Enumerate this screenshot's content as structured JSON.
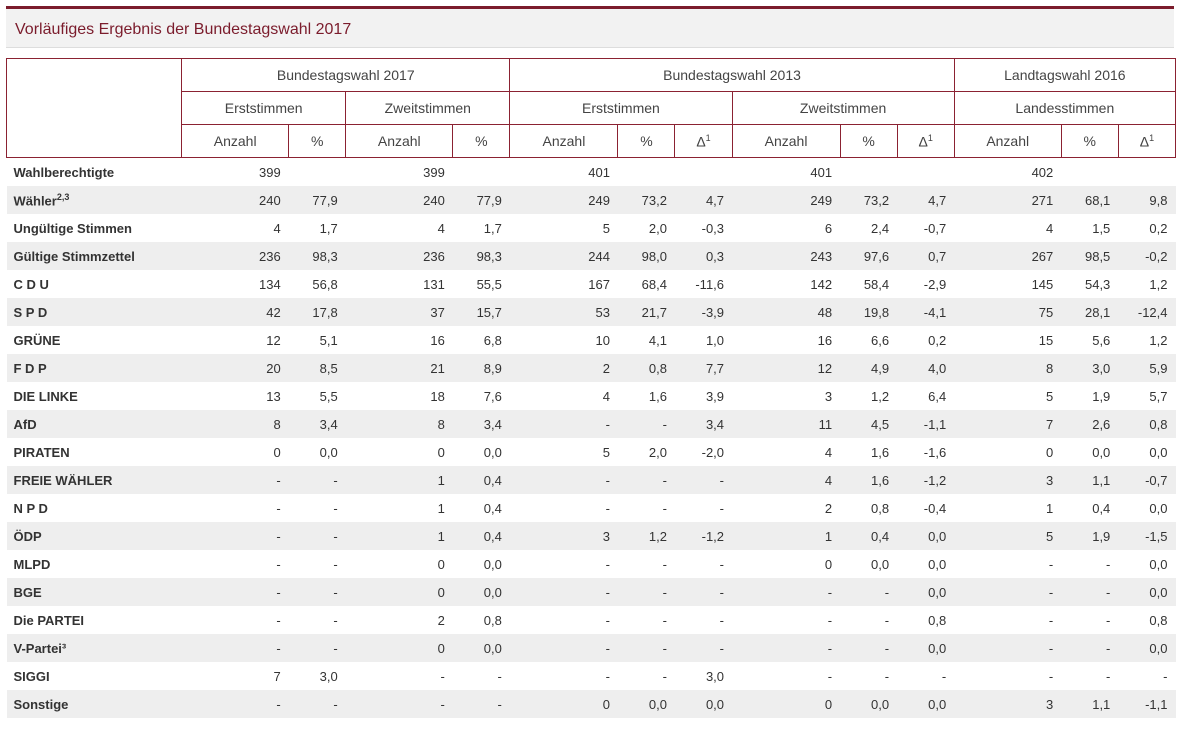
{
  "page": {
    "title": "Vorläufiges Ergebnis der Bundestagswahl 2017"
  },
  "header": {
    "groups": [
      "Bundestagswahl 2017",
      "Bundestagswahl 2013",
      "Landtagswahl 2016"
    ],
    "subgroups": [
      "Erststimmen",
      "Zweitstimmen",
      "Erststimmen",
      "Zweitstimmen",
      "Landesstimmen"
    ],
    "anzahl": "Anzahl",
    "percent": "%",
    "delta": "Δ",
    "delta_sup": "1"
  },
  "rows": [
    {
      "label": "Wahlberechtigte",
      "sup": "",
      "cells": [
        "399",
        "",
        "399",
        "",
        "401",
        "",
        "",
        "401",
        "",
        "",
        "402",
        "",
        ""
      ]
    },
    {
      "label": "Wähler",
      "sup": "2,3",
      "cells": [
        "240",
        "77,9",
        "240",
        "77,9",
        "249",
        "73,2",
        "4,7",
        "249",
        "73,2",
        "4,7",
        "271",
        "68,1",
        "9,8"
      ]
    },
    {
      "label": "Ungültige Stimmen",
      "sup": "",
      "cells": [
        "4",
        "1,7",
        "4",
        "1,7",
        "5",
        "2,0",
        "-0,3",
        "6",
        "2,4",
        "-0,7",
        "4",
        "1,5",
        "0,2"
      ]
    },
    {
      "label": "Gültige Stimmzettel",
      "sup": "",
      "cells": [
        "236",
        "98,3",
        "236",
        "98,3",
        "244",
        "98,0",
        "0,3",
        "243",
        "97,6",
        "0,7",
        "267",
        "98,5",
        "-0,2"
      ]
    },
    {
      "label": "C D U",
      "sup": "",
      "cells": [
        "134",
        "56,8",
        "131",
        "55,5",
        "167",
        "68,4",
        "-11,6",
        "142",
        "58,4",
        "-2,9",
        "145",
        "54,3",
        "1,2"
      ]
    },
    {
      "label": "S P D",
      "sup": "",
      "cells": [
        "42",
        "17,8",
        "37",
        "15,7",
        "53",
        "21,7",
        "-3,9",
        "48",
        "19,8",
        "-4,1",
        "75",
        "28,1",
        "-12,4"
      ]
    },
    {
      "label": "GRÜNE",
      "sup": "",
      "cells": [
        "12",
        "5,1",
        "16",
        "6,8",
        "10",
        "4,1",
        "1,0",
        "16",
        "6,6",
        "0,2",
        "15",
        "5,6",
        "1,2"
      ]
    },
    {
      "label": "F D P",
      "sup": "",
      "cells": [
        "20",
        "8,5",
        "21",
        "8,9",
        "2",
        "0,8",
        "7,7",
        "12",
        "4,9",
        "4,0",
        "8",
        "3,0",
        "5,9"
      ]
    },
    {
      "label": "DIE LINKE",
      "sup": "",
      "cells": [
        "13",
        "5,5",
        "18",
        "7,6",
        "4",
        "1,6",
        "3,9",
        "3",
        "1,2",
        "6,4",
        "5",
        "1,9",
        "5,7"
      ]
    },
    {
      "label": "AfD",
      "sup": "",
      "cells": [
        "8",
        "3,4",
        "8",
        "3,4",
        "-",
        "-",
        "3,4",
        "11",
        "4,5",
        "-1,1",
        "7",
        "2,6",
        "0,8"
      ]
    },
    {
      "label": "PIRATEN",
      "sup": "",
      "cells": [
        "0",
        "0,0",
        "0",
        "0,0",
        "5",
        "2,0",
        "-2,0",
        "4",
        "1,6",
        "-1,6",
        "0",
        "0,0",
        "0,0"
      ]
    },
    {
      "label": "FREIE WÄHLER",
      "sup": "",
      "cells": [
        "-",
        "-",
        "1",
        "0,4",
        "-",
        "-",
        "-",
        "4",
        "1,6",
        "-1,2",
        "3",
        "1,1",
        "-0,7"
      ]
    },
    {
      "label": "N P D",
      "sup": "",
      "cells": [
        "-",
        "-",
        "1",
        "0,4",
        "-",
        "-",
        "-",
        "2",
        "0,8",
        "-0,4",
        "1",
        "0,4",
        "0,0"
      ]
    },
    {
      "label": "ÖDP",
      "sup": "",
      "cells": [
        "-",
        "-",
        "1",
        "0,4",
        "3",
        "1,2",
        "-1,2",
        "1",
        "0,4",
        "0,0",
        "5",
        "1,9",
        "-1,5"
      ]
    },
    {
      "label": "MLPD",
      "sup": "",
      "cells": [
        "-",
        "-",
        "0",
        "0,0",
        "-",
        "-",
        "-",
        "0",
        "0,0",
        "0,0",
        "-",
        "-",
        "0,0"
      ]
    },
    {
      "label": "BGE",
      "sup": "",
      "cells": [
        "-",
        "-",
        "0",
        "0,0",
        "-",
        "-",
        "-",
        "-",
        "-",
        "0,0",
        "-",
        "-",
        "0,0"
      ]
    },
    {
      "label": "Die PARTEI",
      "sup": "",
      "cells": [
        "-",
        "-",
        "2",
        "0,8",
        "-",
        "-",
        "-",
        "-",
        "-",
        "0,8",
        "-",
        "-",
        "0,8"
      ]
    },
    {
      "label": "V-Partei³",
      "sup": "",
      "cells": [
        "-",
        "-",
        "0",
        "0,0",
        "-",
        "-",
        "-",
        "-",
        "-",
        "0,0",
        "-",
        "-",
        "0,0"
      ]
    },
    {
      "label": "SIGGI",
      "sup": "",
      "cells": [
        "7",
        "3,0",
        "-",
        "-",
        "-",
        "-",
        "3,0",
        "-",
        "-",
        "-",
        "-",
        "-",
        "-"
      ]
    },
    {
      "label": "Sonstige",
      "sup": "",
      "cells": [
        "-",
        "-",
        "-",
        "-",
        "0",
        "0,0",
        "0,0",
        "0",
        "0,0",
        "0,0",
        "3",
        "1,1",
        "-1,1"
      ]
    }
  ]
}
